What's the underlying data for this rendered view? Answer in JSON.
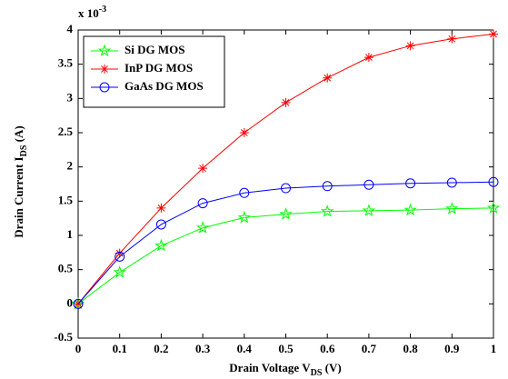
{
  "chart_data": {
    "type": "line",
    "xlabel": {
      "text": "Drain Voltage V",
      "sub": "DS",
      "suffix": " (V)"
    },
    "ylabel": {
      "text": "Drain Current I",
      "sub": "DS",
      "suffix": " (A)"
    },
    "y_multiplier": {
      "base": "x 10",
      "exponent": "-3"
    },
    "x": [
      0,
      0.1,
      0.2,
      0.3,
      0.4,
      0.5,
      0.6,
      0.7,
      0.8,
      0.9,
      1
    ],
    "series": [
      {
        "name": "Si DG MOS",
        "color": "#00ff00",
        "marker": "pentagram",
        "values": [
          0,
          0.46,
          0.85,
          1.11,
          1.26,
          1.31,
          1.35,
          1.36,
          1.37,
          1.39,
          1.4
        ]
      },
      {
        "name": "InP DG MOS",
        "color": "#ff0000",
        "marker": "asterisk",
        "values": [
          0,
          0.74,
          1.4,
          1.98,
          2.5,
          2.94,
          3.3,
          3.6,
          3.77,
          3.87,
          3.94
        ]
      },
      {
        "name": "GaAs DG MOS",
        "color": "#0000ff",
        "marker": "circle",
        "values": [
          0,
          0.69,
          1.16,
          1.47,
          1.62,
          1.69,
          1.72,
          1.74,
          1.76,
          1.77,
          1.78
        ]
      }
    ],
    "xlim": [
      0,
      1
    ],
    "xticks": [
      0,
      0.1,
      0.2,
      0.3,
      0.4,
      0.5,
      0.6,
      0.7,
      0.8,
      0.9,
      1
    ],
    "ylim": [
      -0.5,
      4
    ],
    "yticks": [
      -0.5,
      0,
      0.5,
      1,
      1.5,
      2,
      2.5,
      3,
      3.5,
      4
    ],
    "legend": "upper left",
    "grid": false
  }
}
